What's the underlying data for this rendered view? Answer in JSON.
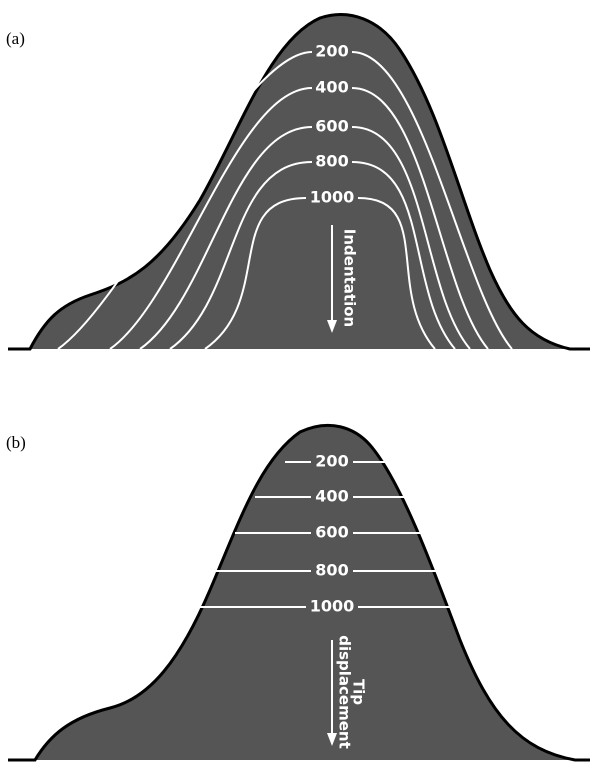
{
  "panels": [
    {
      "label": "(a)",
      "contour_labels": [
        "200",
        "400",
        "600",
        "800",
        "1000"
      ],
      "arrow_label": [
        "Indentation"
      ]
    },
    {
      "label": "(b)",
      "contour_labels": [
        "200",
        "400",
        "600",
        "800",
        "1000"
      ],
      "arrow_label": [
        "Tip",
        "displacement"
      ]
    }
  ]
}
